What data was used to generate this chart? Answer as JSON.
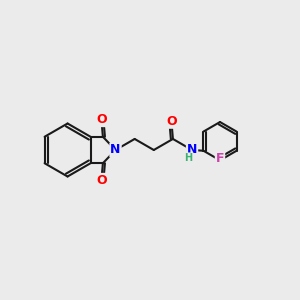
{
  "bg_color": "#ebebeb",
  "bond_color": "#1a1a1a",
  "bond_width": 1.5,
  "atom_colors": {
    "O": "#ff0000",
    "N": "#0000ff",
    "F": "#cc44aa",
    "H": "#3cb371",
    "C": "#1a1a1a"
  },
  "font_size_atom": 9
}
